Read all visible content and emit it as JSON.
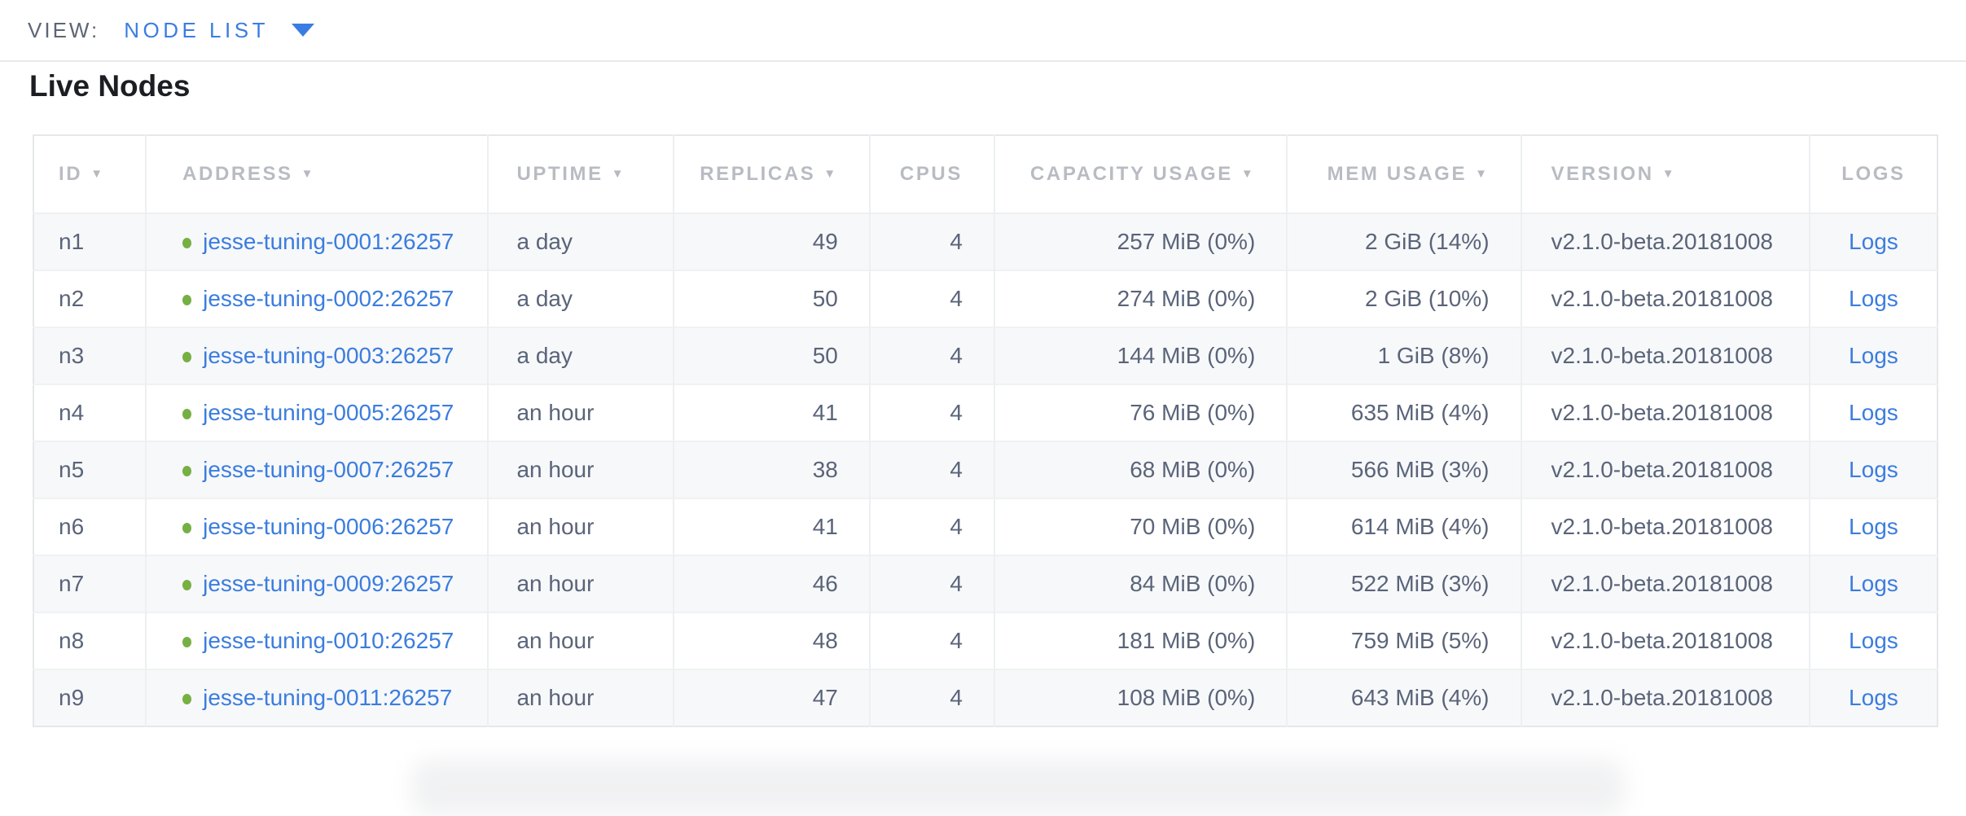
{
  "view_bar": {
    "label": "VIEW:",
    "selected": "NODE LIST"
  },
  "section": {
    "title": "Live Nodes"
  },
  "table": {
    "columns": [
      {
        "key": "id",
        "label": "ID",
        "sortable": true,
        "align": "left"
      },
      {
        "key": "address",
        "label": "ADDRESS",
        "sortable": true,
        "align": "left"
      },
      {
        "key": "uptime",
        "label": "UPTIME",
        "sortable": true,
        "align": "left"
      },
      {
        "key": "replicas",
        "label": "REPLICAS",
        "sortable": true,
        "align": "right"
      },
      {
        "key": "cpus",
        "label": "CPUS",
        "sortable": false,
        "align": "right"
      },
      {
        "key": "capacity",
        "label": "CAPACITY USAGE",
        "sortable": true,
        "align": "right"
      },
      {
        "key": "mem",
        "label": "MEM USAGE",
        "sortable": true,
        "align": "right"
      },
      {
        "key": "version",
        "label": "VERSION",
        "sortable": true,
        "align": "left"
      },
      {
        "key": "logs",
        "label": "LOGS",
        "sortable": false,
        "align": "center"
      }
    ],
    "rows": [
      {
        "id": "n1",
        "address": "jesse-tuning-0001:26257",
        "uptime": "a day",
        "replicas": "49",
        "cpus": "4",
        "capacity": "257 MiB (0%)",
        "mem": "2 GiB (14%)",
        "version": "v2.1.0-beta.20181008",
        "logs": "Logs"
      },
      {
        "id": "n2",
        "address": "jesse-tuning-0002:26257",
        "uptime": "a day",
        "replicas": "50",
        "cpus": "4",
        "capacity": "274 MiB (0%)",
        "mem": "2 GiB (10%)",
        "version": "v2.1.0-beta.20181008",
        "logs": "Logs"
      },
      {
        "id": "n3",
        "address": "jesse-tuning-0003:26257",
        "uptime": "a day",
        "replicas": "50",
        "cpus": "4",
        "capacity": "144 MiB (0%)",
        "mem": "1 GiB (8%)",
        "version": "v2.1.0-beta.20181008",
        "logs": "Logs"
      },
      {
        "id": "n4",
        "address": "jesse-tuning-0005:26257",
        "uptime": "an hour",
        "replicas": "41",
        "cpus": "4",
        "capacity": "76 MiB (0%)",
        "mem": "635 MiB (4%)",
        "version": "v2.1.0-beta.20181008",
        "logs": "Logs"
      },
      {
        "id": "n5",
        "address": "jesse-tuning-0007:26257",
        "uptime": "an hour",
        "replicas": "38",
        "cpus": "4",
        "capacity": "68 MiB (0%)",
        "mem": "566 MiB (3%)",
        "version": "v2.1.0-beta.20181008",
        "logs": "Logs"
      },
      {
        "id": "n6",
        "address": "jesse-tuning-0006:26257",
        "uptime": "an hour",
        "replicas": "41",
        "cpus": "4",
        "capacity": "70 MiB (0%)",
        "mem": "614 MiB (4%)",
        "version": "v2.1.0-beta.20181008",
        "logs": "Logs"
      },
      {
        "id": "n7",
        "address": "jesse-tuning-0009:26257",
        "uptime": "an hour",
        "replicas": "46",
        "cpus": "4",
        "capacity": "84 MiB (0%)",
        "mem": "522 MiB (3%)",
        "version": "v2.1.0-beta.20181008",
        "logs": "Logs"
      },
      {
        "id": "n8",
        "address": "jesse-tuning-0010:26257",
        "uptime": "an hour",
        "replicas": "48",
        "cpus": "4",
        "capacity": "181 MiB (0%)",
        "mem": "759 MiB (5%)",
        "version": "v2.1.0-beta.20181008",
        "logs": "Logs"
      },
      {
        "id": "n9",
        "address": "jesse-tuning-0011:26257",
        "uptime": "an hour",
        "replicas": "47",
        "cpus": "4",
        "capacity": "108 MiB (0%)",
        "mem": "643 MiB (4%)",
        "version": "v2.1.0-beta.20181008",
        "logs": "Logs"
      }
    ]
  },
  "colors": {
    "accent": "#3a7de2",
    "link": "#3b7dde",
    "node_live_dot": "#76b043",
    "header_text": "#b8bcc2",
    "cell_text": "#5a6479",
    "row_alt_bg": "#f7f8fa"
  }
}
